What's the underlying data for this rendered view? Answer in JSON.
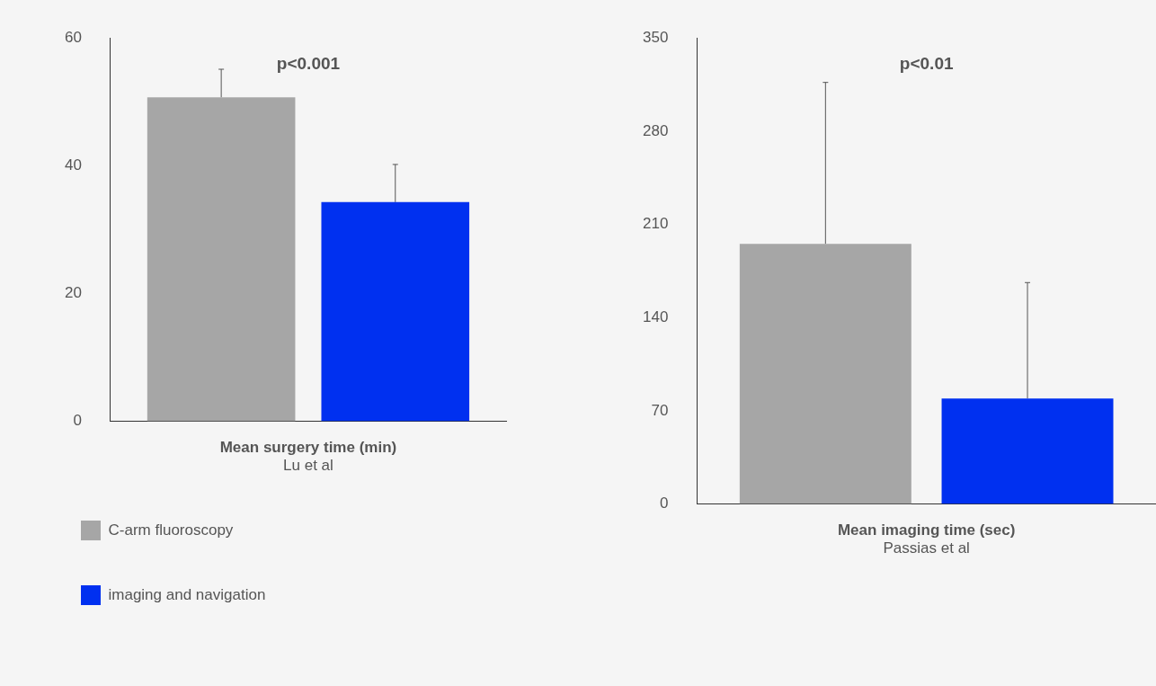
{
  "chart_data": [
    {
      "type": "bar",
      "categories": [
        "Mean surgery time (min)"
      ],
      "series": [
        {
          "name": "C-arm fluoroscopy",
          "color": "#a6a6a6",
          "values": [
            50.7
          ],
          "errors": [
            [
              50.7,
              55.1
            ]
          ]
        },
        {
          "name": "imaging and navigation",
          "color": "#0030f0",
          "values": [
            34.3
          ],
          "errors": [
            [
              34.3,
              40.2
            ]
          ]
        }
      ],
      "ylim": [
        0,
        60
      ],
      "yticks": [
        0,
        20,
        40,
        60
      ],
      "grid": false,
      "legend": "bottom left",
      "annotations": [
        "p<0.001",
        "Lu et al"
      ]
    },
    {
      "type": "bar",
      "categories": [
        "Mean imaging time (sec)"
      ],
      "series": [
        {
          "color": "#a6a6a6",
          "values": [
            195.3
          ],
          "errors": [
            [
              195.3,
              316.6
            ]
          ]
        },
        {
          "color": "#0030f0",
          "values": [
            79.3
          ],
          "errors": [
            [
              79.3,
              166.3
            ]
          ]
        }
      ],
      "ylim": [
        0,
        350
      ],
      "yticks": [
        0,
        70,
        140,
        210,
        280,
        350
      ],
      "grid": false,
      "annotations": [
        "p<0.01",
        "Passias et al"
      ]
    }
  ]
}
